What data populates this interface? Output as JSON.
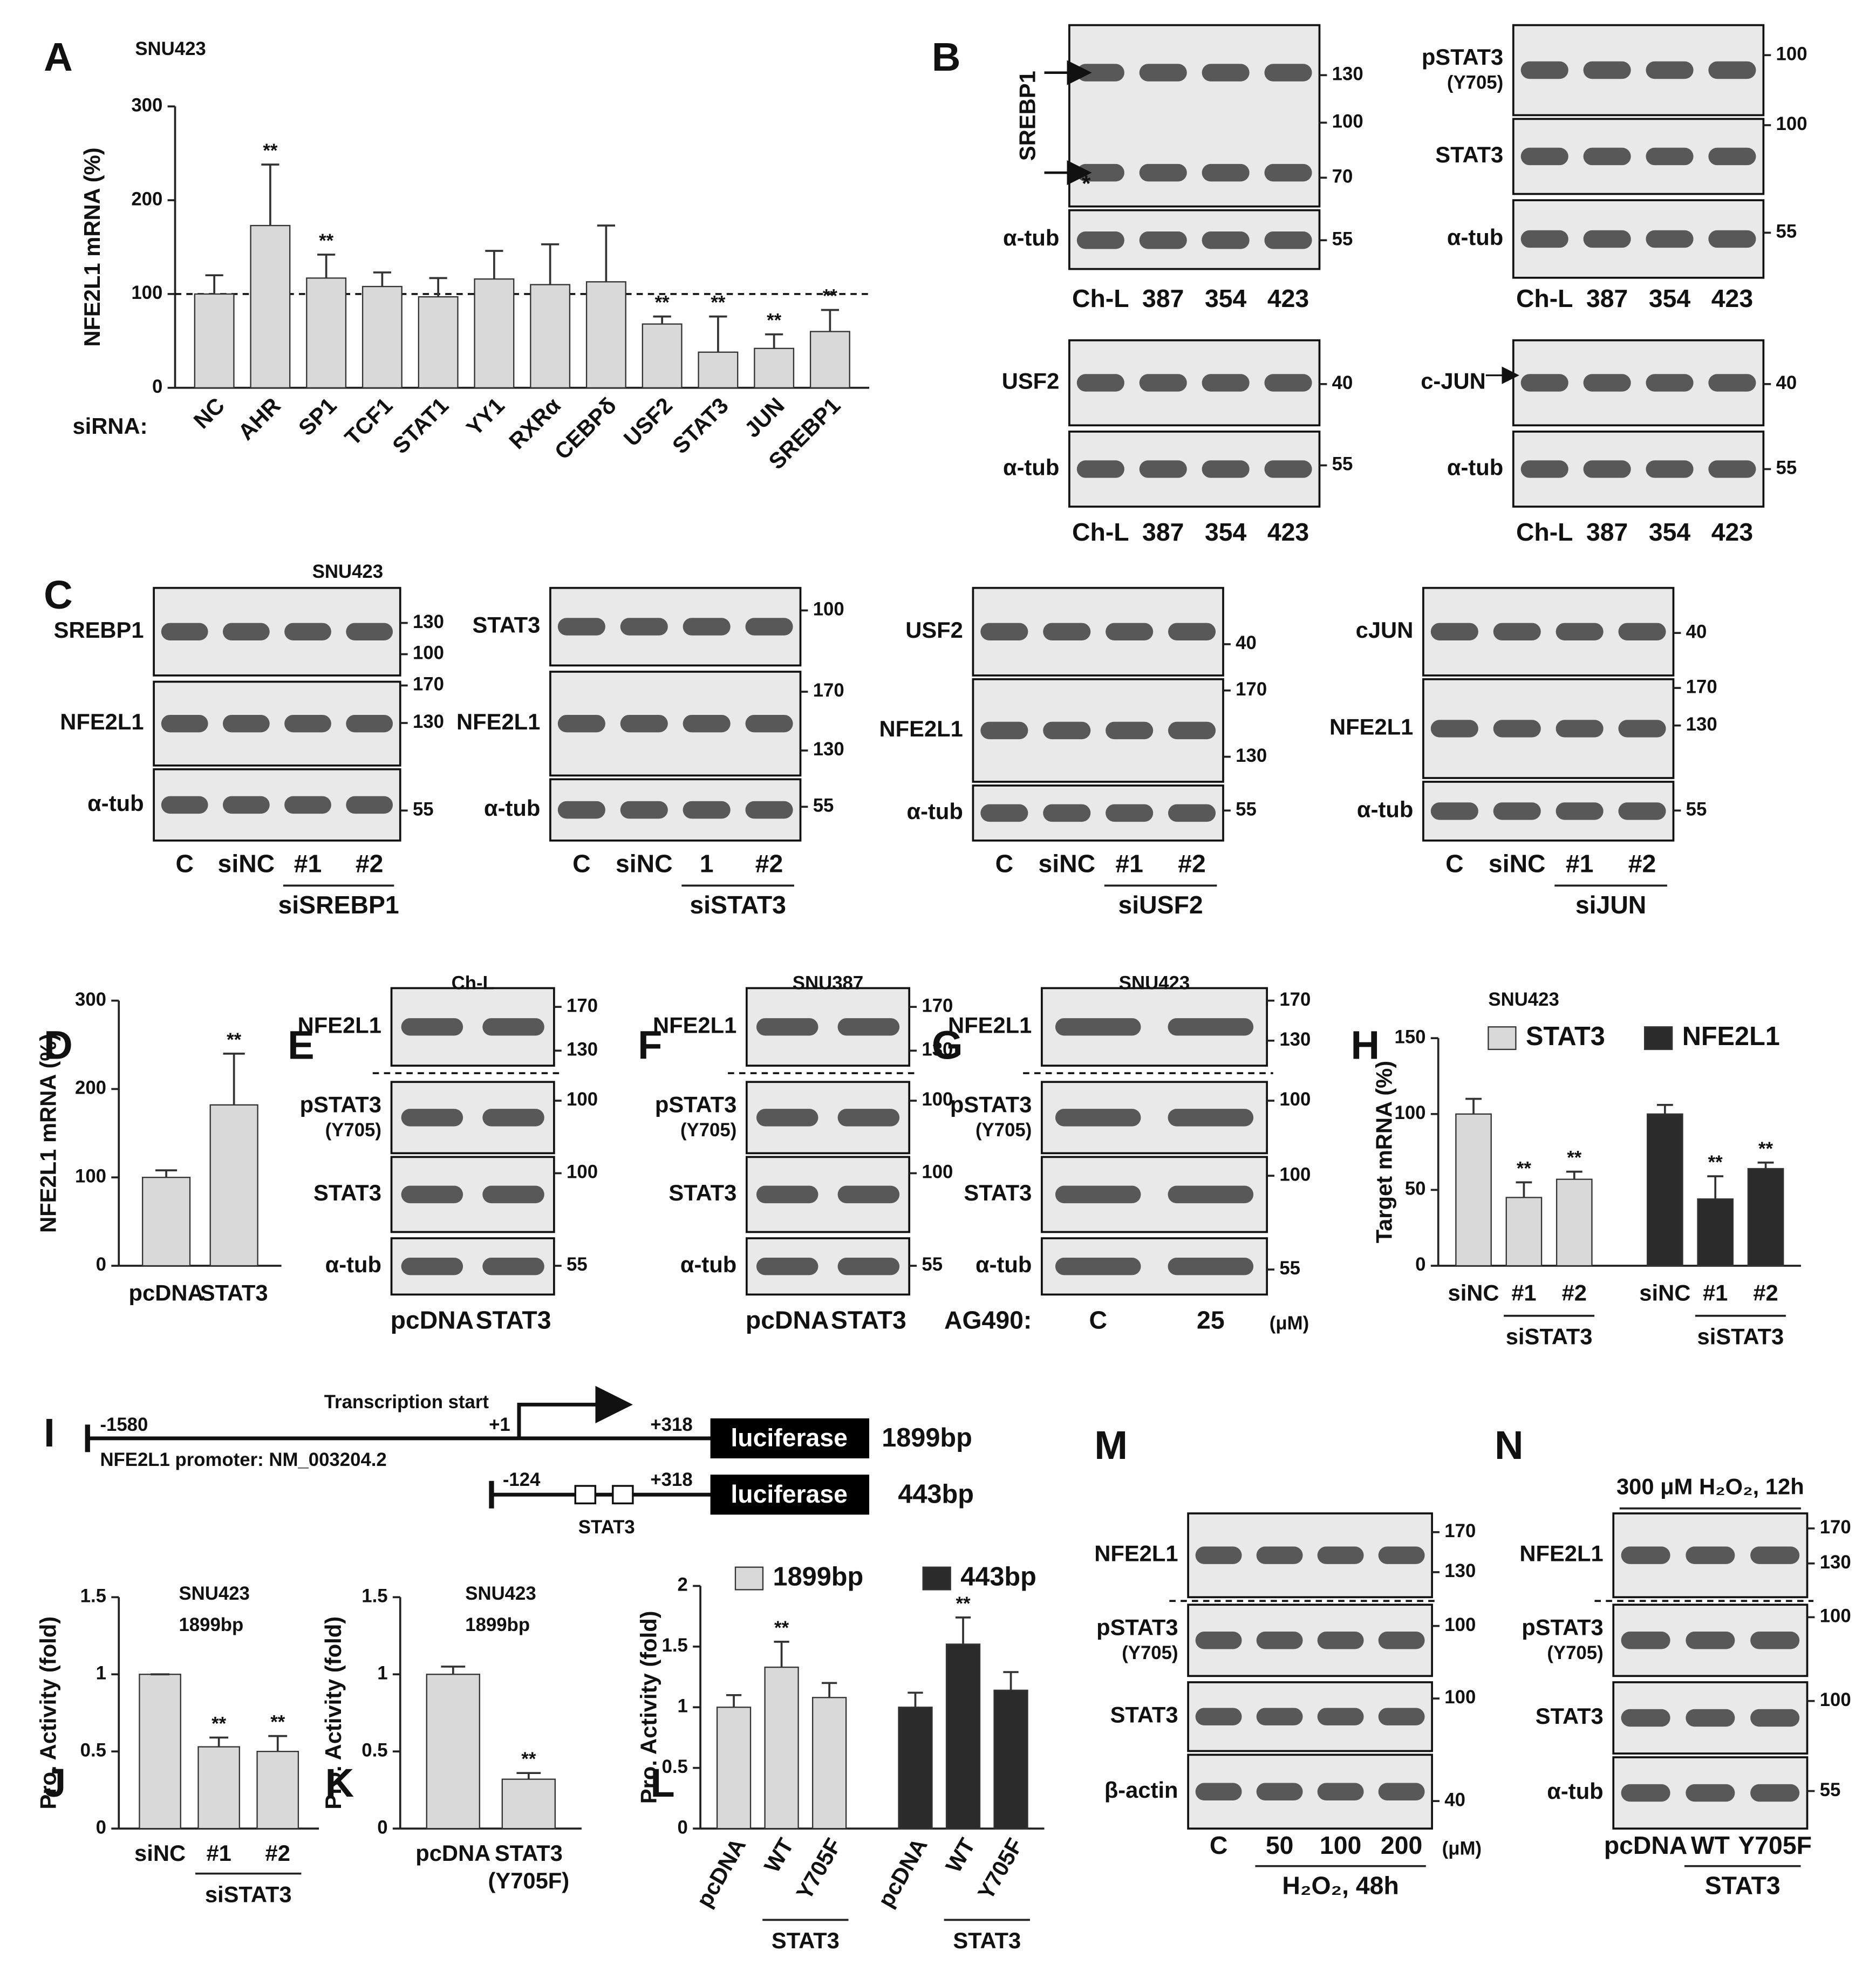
{
  "panel_labels": [
    "A",
    "B",
    "C",
    "D",
    "E",
    "F",
    "G",
    "H",
    "I",
    "J",
    "K",
    "L",
    "M",
    "N"
  ],
  "chart_data": [
    {
      "type": "bar",
      "title": "SNU423",
      "ylabel": "NFE2L1 mRNA (%)",
      "xlabel": "siRNA:",
      "categories": [
        "NC",
        "AHR",
        "SP1",
        "TCF1",
        "STAT1",
        "YY1",
        "RXRα",
        "CEBPδ",
        "USF2",
        "STAT3",
        "JUN",
        "SREBP1"
      ],
      "values": [
        100,
        173,
        117,
        108,
        97,
        116,
        110,
        113,
        68,
        38,
        42,
        60
      ],
      "errors": [
        20,
        65,
        25,
        15,
        20,
        30,
        43,
        60,
        8,
        38,
        15,
        23
      ],
      "significance": [
        null,
        "**",
        "**",
        null,
        null,
        null,
        null,
        null,
        "**",
        "**",
        "**",
        "**"
      ],
      "color": "#d9d9d9",
      "ylim": [
        0,
        300
      ],
      "yticks": [
        0,
        100,
        200,
        300
      ],
      "reference_line": 100
    },
    {
      "type": "bar",
      "ylabel": "NFE2L1 mRNA (%)",
      "categories": [
        "pcDNA",
        "STAT3"
      ],
      "values": [
        100,
        182
      ],
      "errors": [
        8,
        58
      ],
      "significance": [
        null,
        "**"
      ],
      "color": "#d9d9d9",
      "ylim": [
        0,
        300
      ],
      "yticks": [
        0,
        100,
        200,
        300
      ]
    },
    {
      "type": "bar",
      "title": "SNU423",
      "ylabel": "Target mRNA (%)",
      "categories": [
        "siNC",
        "#1",
        "#2"
      ],
      "group_label": "siSTAT3",
      "series": [
        {
          "name": "STAT3",
          "color": "#d9d9d9",
          "values": [
            100,
            45,
            57
          ],
          "errors": [
            10,
            10,
            5
          ],
          "significance": [
            null,
            "**",
            "**"
          ]
        },
        {
          "name": "NFE2L1",
          "color": "#2b2b2b",
          "values": [
            100,
            44,
            64
          ],
          "errors": [
            6,
            15,
            4
          ],
          "significance": [
            null,
            "**",
            "**"
          ]
        }
      ],
      "ylim": [
        0,
        150
      ],
      "yticks": [
        0,
        50,
        100,
        150
      ]
    },
    {
      "type": "bar",
      "title": "SNU423",
      "subtitle": "1899bp",
      "ylabel": "Pro. Activity (fold)",
      "categories": [
        "siNC",
        "#1",
        "#2"
      ],
      "group_label": "siSTAT3",
      "values": [
        1,
        0.53,
        0.5
      ],
      "errors": [
        0,
        0.06,
        0.1
      ],
      "significance": [
        null,
        "**",
        "**"
      ],
      "color": "#d9d9d9",
      "ylim": [
        0,
        1.5
      ],
      "yticks": [
        0,
        0.5,
        1,
        1.5
      ]
    },
    {
      "type": "bar",
      "title": "SNU423",
      "subtitle": "1899bp",
      "ylabel": "Pro. Activity (fold)",
      "categories": [
        "pcDNA",
        [
          "STAT3",
          "(Y705F)"
        ]
      ],
      "values": [
        1,
        0.32
      ],
      "errors": [
        0.05,
        0.04
      ],
      "significance": [
        null,
        "**"
      ],
      "color": "#d9d9d9",
      "ylim": [
        0,
        1.5
      ],
      "yticks": [
        0,
        0.5,
        1,
        1.5
      ]
    },
    {
      "type": "bar",
      "ylabel": "Pro. Activity (fold)",
      "categories": [
        "pcDNA",
        "WT",
        "Y705F"
      ],
      "group_label": "STAT3",
      "series": [
        {
          "name": "1899bp",
          "color": "#d9d9d9",
          "values": [
            1,
            1.33,
            1.08
          ],
          "errors": [
            0.1,
            0.21,
            0.12
          ],
          "significance": [
            null,
            "**",
            null
          ]
        },
        {
          "name": "443bp",
          "color": "#2b2b2b",
          "values": [
            1,
            1.52,
            1.14
          ],
          "errors": [
            0.12,
            0.22,
            0.15
          ],
          "significance": [
            null,
            "**",
            null
          ]
        }
      ],
      "ylim": [
        0,
        2
      ],
      "yticks": [
        0,
        0.5,
        1,
        1.5,
        2
      ]
    }
  ],
  "blots": [
    {
      "rows": [
        {
          "label": "SREBP1",
          "markers": [
            130,
            100,
            70
          ]
        },
        {
          "label": "α-tub",
          "markers": [
            55
          ]
        }
      ],
      "lanes": [
        "Ch-L",
        "387",
        "354",
        "423"
      ],
      "annotation": "*"
    },
    {
      "rows": [
        {
          "label": "pSTAT3",
          "sublabel": "(Y705)",
          "markers": [
            100
          ]
        },
        {
          "label": "STAT3",
          "markers": [
            100
          ]
        },
        {
          "label": "α-tub",
          "markers": [
            55
          ]
        }
      ],
      "lanes": [
        "Ch-L",
        "387",
        "354",
        "423"
      ]
    },
    {
      "rows": [
        {
          "label": "USF2",
          "markers": [
            40
          ]
        },
        {
          "label": "α-tub",
          "markers": [
            55
          ]
        }
      ],
      "lanes": [
        "Ch-L",
        "387",
        "354",
        "423"
      ]
    },
    {
      "rows": [
        {
          "label": "c-JUN",
          "markers": [
            40
          ]
        },
        {
          "label": "α-tub",
          "markers": [
            55
          ]
        }
      ],
      "lanes": [
        "Ch-L",
        "387",
        "354",
        "423"
      ]
    },
    {
      "title": "SNU423",
      "rows": [
        {
          "label": "SREBP1",
          "markers": [
            130,
            100
          ]
        },
        {
          "label": "NFE2L1",
          "markers": [
            170,
            130
          ]
        },
        {
          "label": "α-tub",
          "markers": [
            55
          ]
        }
      ],
      "lanes": [
        "C",
        "siNC",
        "#1",
        "#2"
      ],
      "group_label": "siSREBP1"
    },
    {
      "rows": [
        {
          "label": "STAT3",
          "markers": [
            100
          ]
        },
        {
          "label": "NFE2L1",
          "markers": [
            170,
            130
          ]
        },
        {
          "label": "α-tub",
          "markers": [
            55
          ]
        }
      ],
      "lanes": [
        "C",
        "siNC",
        "1",
        "#2"
      ],
      "group_label": "siSTAT3"
    },
    {
      "rows": [
        {
          "label": "USF2",
          "markers": [
            40
          ]
        },
        {
          "label": "NFE2L1",
          "markers": [
            170,
            130
          ]
        },
        {
          "label": "α-tub",
          "markers": [
            55
          ]
        }
      ],
      "lanes": [
        "C",
        "siNC",
        "#1",
        "#2"
      ],
      "group_label": "siUSF2"
    },
    {
      "rows": [
        {
          "label": "cJUN",
          "markers": [
            40
          ]
        },
        {
          "label": "NFE2L1",
          "markers": [
            170,
            130
          ]
        },
        {
          "label": "α-tub",
          "markers": [
            55
          ]
        }
      ],
      "lanes": [
        "C",
        "siNC",
        "#1",
        "#2"
      ],
      "group_label": "siJUN"
    },
    {
      "title": "Ch-L",
      "rows": [
        {
          "label": "NFE2L1",
          "markers": [
            170,
            130
          ]
        },
        {
          "label": "pSTAT3",
          "sublabel": "(Y705)",
          "markers": [
            100
          ]
        },
        {
          "label": "STAT3",
          "markers": [
            100
          ]
        },
        {
          "label": "α-tub",
          "markers": [
            55
          ]
        }
      ],
      "lanes": [
        "pcDNA",
        "STAT3"
      ]
    },
    {
      "title": "SNU387",
      "rows": [
        {
          "label": "NFE2L1",
          "markers": [
            170,
            130
          ]
        },
        {
          "label": "pSTAT3",
          "sublabel": "(Y705)",
          "markers": [
            100
          ]
        },
        {
          "label": "STAT3",
          "markers": [
            100
          ]
        },
        {
          "label": "α-tub",
          "markers": [
            55
          ]
        }
      ],
      "lanes": [
        "pcDNA",
        "STAT3"
      ]
    },
    {
      "title": "SNU423",
      "rows": [
        {
          "label": "NFE2L1",
          "markers": [
            170,
            130
          ]
        },
        {
          "label": "pSTAT3",
          "sublabel": "(Y705)",
          "markers": [
            100
          ]
        },
        {
          "label": "STAT3",
          "markers": [
            100
          ]
        },
        {
          "label": "α-tub",
          "markers": [
            55
          ]
        }
      ],
      "lanes": [
        "C",
        "25"
      ],
      "lane_prefix": "AG490:",
      "unit": "(μM)"
    },
    {
      "rows": [
        {
          "label": "NFE2L1",
          "markers": [
            170,
            130
          ]
        },
        {
          "label": "pSTAT3",
          "sublabel": "(Y705)",
          "markers": [
            100
          ]
        },
        {
          "label": "STAT3",
          "markers": [
            100
          ]
        },
        {
          "label": "β-actin",
          "markers": [
            40
          ]
        }
      ],
      "lanes": [
        "C",
        "50",
        "100",
        "200"
      ],
      "unit": "(μM)",
      "group_label": "H₂O₂, 48h"
    },
    {
      "title": "300 μM H₂O₂, 12h",
      "rows": [
        {
          "label": "NFE2L1",
          "markers": [
            170,
            130
          ]
        },
        {
          "label": "pSTAT3",
          "sublabel": "(Y705)",
          "markers": [
            100
          ]
        },
        {
          "label": "STAT3",
          "markers": [
            100
          ]
        },
        {
          "label": "α-tub",
          "markers": [
            55
          ]
        }
      ],
      "lanes": [
        "pcDNA",
        "WT",
        "Y705F"
      ],
      "group_label": "STAT3"
    }
  ],
  "promoter_diagram": {
    "start_label": "Transcription start",
    "tss": "+1",
    "constructs": [
      {
        "start": "-1580",
        "end": "+318",
        "reporter": "luciferase",
        "size": "1899bp",
        "caption": "NFE2L1 promoter: NM_003204.2"
      },
      {
        "start": "-124",
        "end": "+318",
        "reporter": "luciferase",
        "size": "443bp",
        "site": "STAT3"
      }
    ]
  }
}
